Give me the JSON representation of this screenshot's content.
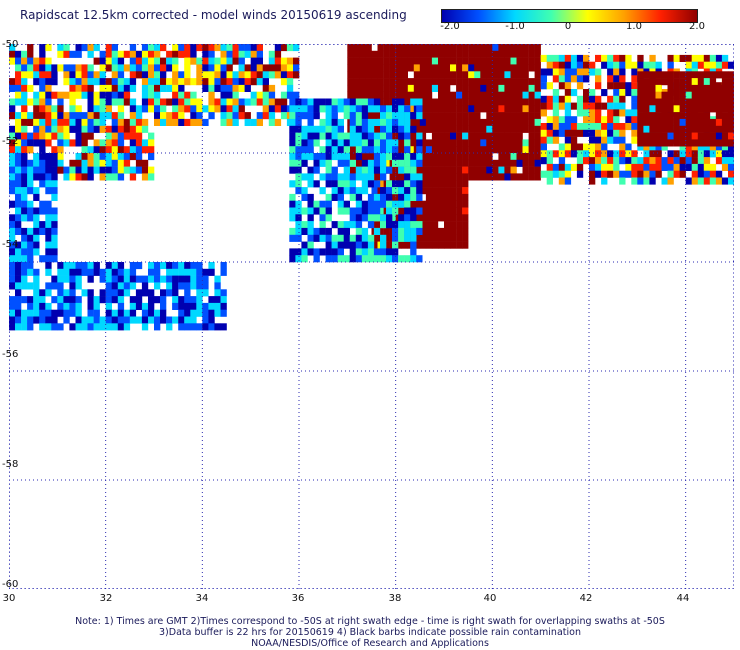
{
  "title": "Rapidscat 12.5km corrected - model winds 20150619 ascending",
  "colorbar": {
    "ticks": [
      "-2.0",
      "-1.0",
      "0",
      "1.0",
      "2.0"
    ],
    "range": [
      -2.0,
      2.0
    ],
    "colors": [
      "#0000b0",
      "#0050ff",
      "#00d8ff",
      "#40ffb0",
      "#ffff00",
      "#ffa000",
      "#ff2000",
      "#900000"
    ]
  },
  "axes": {
    "x_ticks": [
      "30",
      "32",
      "34",
      "36",
      "38",
      "40",
      "42",
      "44"
    ],
    "y_ticks": [
      "-50",
      "-52",
      "-54",
      "-56",
      "-58",
      "-60"
    ],
    "x_range": [
      30,
      45
    ],
    "y_range": [
      -60,
      -50
    ]
  },
  "map_regions": [
    {
      "name": "western-swath",
      "lon": [
        30.0,
        33.0
      ],
      "lat": [
        -52.5,
        -50.0
      ],
      "value_mix": "mixed"
    },
    {
      "name": "western-lower-swath",
      "lon": [
        30.0,
        31.0
      ],
      "lat": [
        -54.0,
        -52.0
      ],
      "value_mix": "negative"
    },
    {
      "name": "southern-strip",
      "lon": [
        30.0,
        34.5
      ],
      "lat": [
        -55.2,
        -54.0
      ],
      "value_mix": "negative"
    },
    {
      "name": "central-strip",
      "lon": [
        33.0,
        36.0
      ],
      "lat": [
        -51.5,
        -50.0
      ],
      "value_mix": "mixed"
    },
    {
      "name": "central-positive-block",
      "lon": [
        37.0,
        41.0
      ],
      "lat": [
        -52.5,
        -50.0
      ],
      "value_mix": "strong-positive"
    },
    {
      "name": "central-lower-block",
      "lon": [
        37.5,
        39.5
      ],
      "lat": [
        -53.7,
        -52.5
      ],
      "value_mix": "strong-positive"
    },
    {
      "name": "central-edge",
      "lon": [
        35.8,
        38.5
      ],
      "lat": [
        -54.0,
        -51.0
      ],
      "value_mix": "negative-edge"
    },
    {
      "name": "eastern-swath",
      "lon": [
        41.0,
        45.0
      ],
      "lat": [
        -52.5,
        -50.2
      ],
      "value_mix": "mixed"
    },
    {
      "name": "eastern-positive",
      "lon": [
        43.0,
        45.0
      ],
      "lat": [
        -51.8,
        -50.5
      ],
      "value_mix": "strong-positive"
    }
  ],
  "notes": {
    "line1": "Note: 1) Times are GMT 2)Times correspond to -50S at right swath edge - time is right swath for overlapping swaths at -50S",
    "line2": "3)Data buffer is 22 hrs for 20150619 4) Black barbs indicate possible rain contamination",
    "line3": "NOAA/NESDIS/Office of Research and Applications"
  }
}
